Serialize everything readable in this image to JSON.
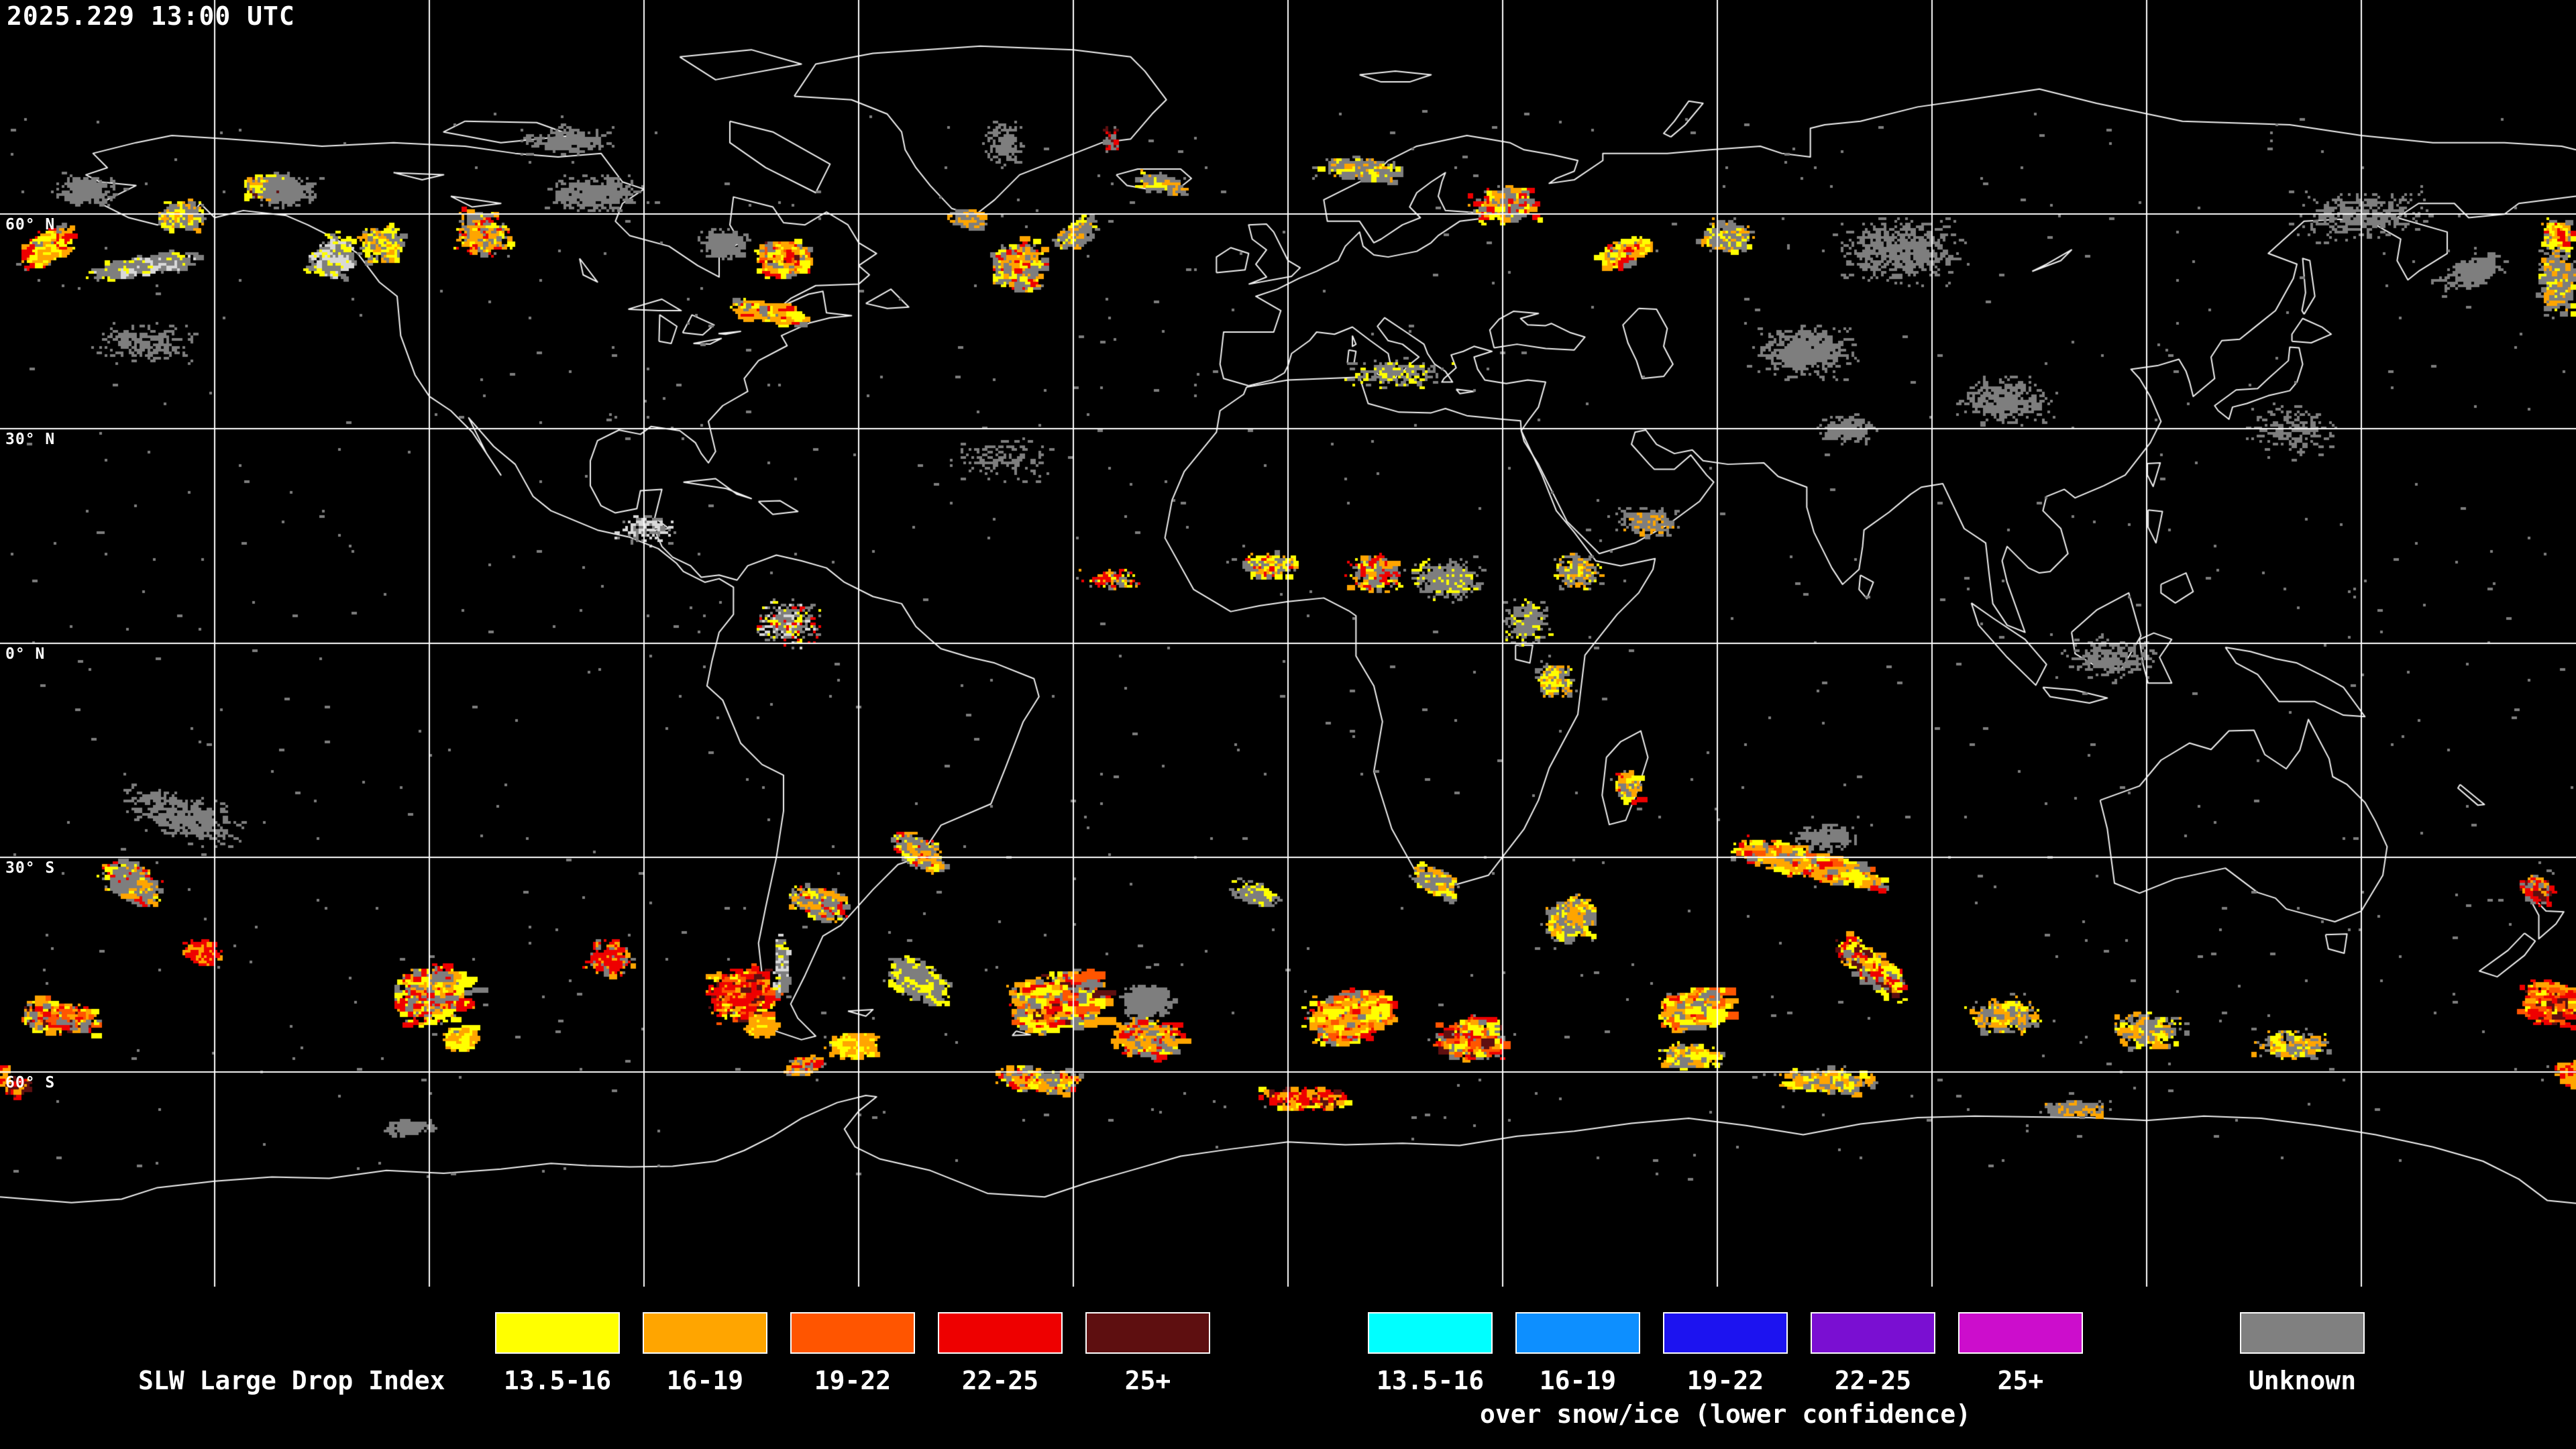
{
  "header": {
    "timestamp": "2025.229 13:00 UTC"
  },
  "map": {
    "background": "#000000",
    "grid_color": "#ffffff",
    "coastline_color": "#f2f2f2",
    "lat_lines": [
      60,
      30,
      0,
      -30,
      -60
    ],
    "lon_lines": [
      -150,
      -120,
      -90,
      -60,
      -30,
      0,
      30,
      60,
      90,
      120,
      150
    ],
    "lat_labels": [
      {
        "text": "60° N",
        "lat": 60
      },
      {
        "text": "30° N",
        "lat": 30
      },
      {
        "text": "0° N",
        "lat": 0
      },
      {
        "text": "30° S",
        "lat": -30
      },
      {
        "text": "60° S",
        "lat": -60
      }
    ],
    "palette": {
      "g": "#7e7e7e",
      "w": "#d8d8d8",
      "y": "#ffff00",
      "o": "#ffa500",
      "r": "#ff5500",
      "e": "#ee0000",
      "d": "#5e0f10"
    },
    "coastlines": [
      "-156 71,-161 70,-167 68.5,-165 66.5,-168 65.5,-166 64.5,-161 64,-166 61.5,-162 59.5,-158 58.5,-154 59,-152 61.5,-150 59.5,-146 60.5,-140 59.8,-137 58.5,-133 56.5,-130 54.5,-127 50.5,-124.5 48.5,-124 43,-122 37.5,-120 34.5,-117 32.5,-114 29.5,-110 23.5,-112 26.5,-114.5 31.5,-111 27.5,-108 25,-105.5 20.5,-103 18.5,-96.5 15.8,-92 14.8,-88 13.2,-85.5 11.2,-84.5 10,-81.5 8.5,-79.5 9,-77.5 7.8,-77.5 4,-79.5 1.5,-80.5 -2.5,-81.2 -6,-79 -8,-76.5 -14,-73.5 -17,-70.5 -18.5,-70.5 -23.5,-71.5 -30,-73 -37,-74 -42,-73.5 -46.5,-74.5 -50,-72.5 -54,-68 -55.5,-66 -55,-68.5 -52.5,-69.5 -50.5,-67.5 -46.5,-65 -41,-62.5 -39.5,-58 -34.5,-54.5 -31,-51.5 -30,-48.5 -25.5,-41.5 -22.5,-39.5 -17.5,-37 -11,-34.8 -7.5,-35.5 -5,-41 -2.8,-44.5 -2,-48.5 -0.8,-50 0.5,-52 2.3,-54 5.5,-58 6.5,-62 8.5,-64.5 10.5,-68 11.5,-71.5 12.3,-75.5 10.8,-77 8.8,-79.5 9.5,-82 9.2,-83.5 10.8,-86 12,-87.5 13.5,-88.5 15.8,-86.5 16,-88.5 17.5,-87.5 21.5,-90.5 21.3,-91 18.8,-94 18.2,-96 19.2,-97.5 22,-97.5 25.5,-96.5 28.3,-93.5 29.8,-90.5 29.2,-89 30.3,-85 29.7,-82.8 28,-82 26.5,-81 25.2,-80 26.8,-81 31,-79 33.2,-75.5 35.2,-76 37,-74 39.5,-70 41.6,-70.8 43,-66.8 44.8,-64 45.5,-61 45.8,-64.5 46.2,-65 49.2,-67 48.8,-71 47,-69.5 48.2,-66 50,-60 50.2,-58.5 51.5,-60 52.8,-57.5 54.5,-60 56,-61.5 58.5,-64.5 60.3,-67.5 58.5,-70.5 58.8,-72 61,-77.5 62.4,-78 58.5,-76.5 56,-79.5 54.5,-79.5 51.2,-82.5 52.8,-86.5 55.5,-92 57,-94 59,-93 61.5,-90 63.5,-93 64.5,-96 68.5,-102 68,-108 68.5,-115 69.5,-125 70,-135 69.5,-141 70,-148 70.5,-156 71",
      "-69 76.5,-66 81,-58 82.5,-43 83.5,-30 83,-22 82,-20 80,-17 76,-19 74,-22 70.5,-26 70,-37.5 65.5,-41 62,-43.8 59.8,-47 60.8,-50 64,-52 66.5,-53.5 69,-54 71.5,-56 74,-61 76,-69 76.5",
      "-78 73,-72 71.5,-64 67,-66 63,-73 66.5,-78 70,-78 73",
      "-115 73,-105 72.8,-100 71,-110 70,-118 71.5,-115 73",
      "-85 82,-75 83,-68 81,-80 78.8,-85 82",
      "-59 47.5,-56 46.8,-53 47,-55.5 49.5,-59 47.5",
      "-84.5 22.5,-80 23,-77 20.8,-75 20.2,-78.5 21.6,-84.5 22.5",
      "-74 19.8,-71 19.9,-68.5 18.4,-72 18,-74 19.8",
      "-24 65.5,-21 66.3,-15 66.3,-13.5 65,-15 63.8,-19 63.4,-22.5 64,-24 65.5",
      "-5.5 50.2,-3 51.2,-4.5 53,-3 55,-5 56.5,-5.5 58.5,-3 58.6,-2 57.5,0 53.5,1.7 52.5,0.5 51.3,-5.5 50.2",
      "-10 51.8,-6 52.2,-5.5 54.5,-8 55.3,-10 54,-10 51.8",
      "10 79.5,15 80,20 79.5,17 78.5,13 78.5,10 79.5",
      "53.5 70.8,55.5 72.5,58 75.5,56 75.8,54 73,52.5 71.3,53.5 70.8",
      "-92.2 46.7,-88 46.5,-84.8 46.5,-87.5 48.1,-92.2 46.7",
      "-87.9 42.2,-86.2 41.9,-85.4 44.3,-87.8 45.9,-87.9 42.2",
      "-84.6 43.4,-81.8 43.1,-80.2 44.5,-83.3 45.9,-84.6 43.4",
      "-83.1 41.9,-79.2 42.6,-80.8 41.8,-83.1 41.9",
      "-79.6 43.3,-76.5 43.6,-78.6 43.2,-79.6 43.3",
      "-125 65.8,-118 65.5,-121 64.8,-125 65.8",
      "-117 62.5,-110 61.5,-114 61,-117 62.5",
      "-99 53.8,-96.5 50.5,-98.5 51.5,-99 53.8",
      "-5.5 36,-9 37,-9.5 39,-9 43.5,-2 43.5,-1 46.5,-4.5 48.5,-1.5 49.5,1.5 51,4 52,7 53.5,8 55.5,10 57.5,10.5 55.5,12 54.3,14 54,18 54.8,20 56,21 57,24 59,28 59.5,30 59.9,25 60.3,22 60.5,21 62.5,21.5 64.5,22 65.8,20 64.5,18 63,17 61,18.5 59.5,16 58.5,13 56.5,12 56,10 59,5.5 59,5 62,8 63.5,12 65.5,14 67.5,18 69.5,25 71,28 70.5,31 70,33 69,37 68.3,40.5 67.5,40 66,37.5 65,36.5 64.3,40 64.8,44 67.5,44 68.5,53 68.5,59 69,66 69.5,69 68.5,73 68,73 72,75 72.5,80 73,88 75,95 76,105 77.5,113 75.5,125 73,140 72.5,150 71,160 70,170 70,178 69.5,180 69",
      "180 62.5,172 61.5,170 60,165 59.5,163 61.5,158 61.5,155 59.5,162 57.5,162 54.5,158 52,156.5 50.8,155 53.5,155.5 56.5,152 58.5,147 59.3,142 59,137 54.5,141 53,140.5 51,138 46.5,135.5 44.5,133 42.5,130.5 42.3,129 40,129.5 37,126.5 34.5,126 36.5,125.5 38,124.5 39.7,121.5 38.8,117.8 38.3,119 37,120.5 34.5,122 31,120.5 28,117 23.5,114 22,110 20.3,108.5 21.5,106 20.5,105.5 18.5,108 16,109 12.5,106.5 10,105 9.8,103.5 10.5,100.5 13.5,99.8 11.5,100.5 8.5,103 1.5,100.5 2.5,98.5 5.5,98 9.5,97.5 14,94.5 16,91.5 22.3,88.5 21.8,87 20.8,84 18.3,80.5 15.8,80.3 13.5,79.8 10.3,77.5 8.2,76 10.5,73.5 15.5,72.5 19,72.5 21.8,68.5 23.3,66.5 25.2,61.5 25,58 25.5,56.5 27,54 26.5,51.5 27.8,50 29.8,48.5 29.5,48 27.8,50.5 25,51.2 24.3,54 24.3,56.3 26.3,58.5 23.5,59.5 22.5,57.5 19.8,53 16.5,48.5 14,43.5 12.5,39 17,37 21,35 25,33 28.2,32.6 29.7,33.5 31,35 33,36 36.5,33.5 36.8,30.5 36.3,27.5 36.8,26.5 38.3,26 40,28.5 40.8,26 41.5,24.5 40.8,22.8 40.3,23.5 38.5,21.8 37,21.5 36.5,23 36.5,22 38,20.5 39,19.5 40.5,19 41.8,16.5 43.5,13.5 45.5,12.5 44.3,14 42.3,16 41.8,18.3 40,16.8 38.8,15.9 37.8,14.5 38.2,14 40.5,11.5 42.3,9 44.2,6.5 43.2,4 43.5,3 42.3,0.5 40.5,0 38.8,-0.5 37.8,-2.2 36.8,-5.5 36",
      "28.8 41.3,32 41.8,36 41.2,40 41,41.5 42.8,39.5 43.4,36.8 44.7,36 44.4,33.5 44.5,32.5 45.4,35 46.1,31.5 46.4,29.5 45.3,28.2 43.8,28.8 41.3",
      "49 46.8,51.5 46.7,53 44,52.5 41.5,53.8 39,52.5 37.3,49.5 37,48.7 39.5,47.5 42,46.8 44.5,49 46.8",
      "104 52,108 53.5,109.5 55,106 53,104 52",
      "80 9.5,81.8 8.5,80.9 6.2,79.8 7.5,80 9.5",
      "130 32.5,131.5 31.3,132 33,134 33.5,137 34.6,140 35.3,141 36.5,141.8 39,141.3 41.3,140 41.4,139.8 39.5,137 37,135.5 35.6,132.5 35.4,131 34.3,129.5 33.2,130 32.5",
      "140.3 42.2,143 42,145.8 43.2,144.5 44.2,141.8 45.4,140.3 43.2,140.3 42.2",
      "142 46,143.5 48.5,142.8 53.5,141.8 53.8,142.2 49,141.7 46.5,142 46",
      "120.1 25.1,121.9 25.2,120.9 21.9,120.1 23.5,120.1 25.1",
      "120.2 18.6,122.2 18.4,121.3 14,120.2 16.2,120.2 18.6",
      "122 8.2,125.5 9.8,126.5 7.2,124 5.6,122 7,122 8.2",
      "109.5 1.5,113 4.6,117.5 7,119.2 1,116.5 -3.6,113 -3.3,110 -1.5,109.5 1.5",
      "95.5 5.6,98.5 3.5,103 0.5,106 -3,104.5 -5.9,100.5 -2,96.5 2.5,95.5 5.6",
      "105.5 -6.2,110 -6.6,114.5 -7.7,112 -8.4,106.5 -7.5,105.5 -6.2",
      "119 0.5,121 1.4,123.5 0.5,121.8 -2,123.5 -5.6,120.2 -5.6,119.5 -3,119 0.5",
      "131 -0.6,134.5 -1.2,138 -2.2,141 -2.8,145 -4.8,147.5 -6.2,150.5 -10.3,147.5 -10.1,143.5 -8.2,138.5 -8.2,135.5 -4.4,132.5 -2.8,131 -0.6",
      "113.5 -22,114.5 -26,115.5 -33.6,119 -35,124 -33,131 -31.5,135.5 -34.9,138 -35.7,139.5 -37.2,144 -38.4,146.3 -39,150 -37.5,153 -32.5,153.6 -28.5,152 -25,150.5 -22.3,148 -19.8,146 -18.7,145.5 -16.2,142.6 -10.7,141.4 -15,139.5 -17.6,136.5 -15.6,135 -12.2,131.5 -12.3,129 -14.9,126 -14,122 -16.4,119 -20,113.5 -22",
      "145 -40.8,148 -40.7,147.6 -43.4,145.4 -42.8,145 -40.8",
      "172.8 -34.4,175.8 -37.5,178.3 -37.6,177.2 -39.3,174.8 -41.4,174.8 -38.1,172.8 -34.4",
      "172.8 -40.6,174.3 -41.7,172.8 -43.7,169 -46.7,166.5 -45.9,170.5 -43,172.8 -40.6",
      "163.8 -19.8,167.2 -22.6,166.3 -22.7,163.5 -20.3,163.8 -19.8",
      "-5.8 35.8,0 36.8,10 37.2,11.2 33.5,15.5 32.3,20 32.2,22 32.8,25 31.8,30 31.3,32.5 31.1,32.6 29.7,35.5 23.5,37.5 18.5,40 15.5,43 11.5,46.5 10.8,51.3 11.8,51 10.3,49 7,46 4,41.5 -1.7,40.5 -10,36.5 -17.5,35 -22,33 -26,28 -32.5,20 -34.8,18.4 -33,14.5 -26,12 -18,13.2 -11,12 -6,9.5 -1.8,9.5 3.8,8.5 4.5,5 6.3,0 5.8,-4 5.2,-8 4.4,-13.2 7.5,-17.2 14.7,-16.2 20,-14.5 24,-10 29.5,-9.5 32.5,-6.2 34.8,-5.8 35.8",
      "44.5 -16,46.5 -13.8,49.3 -12.3,50.3 -16,48.7 -21,47.2 -24.8,44.9 -25.4,43.9 -21.3,44.3 -17.8,44.5 -16",
      "31.8 -0.3,34.2 -0.3,33.8 -2.8,31.8 -2.3,31.8 -0.3",
      "9 43,9.5 41.8,9 41.5,9 43",
      "8.5 41,9.5 40.8,9.2 39,8.3 39.2,8.5 41",
      "12.5 38.2,15.5 38.3,15 36.8,12.5 37.6,12.5 38.2",
      "23.5 35.5,26 35.2,24 34.9,23.5 35.5",
      "-61.5 -51.5,-58 -51.3,-59 -52.2,-61.5 -51.5",
      "-38 -54.3,-36 -54.8,-38.5 -54.9,-38 -54.3",
      "-180 -77.5,-170 -78.3,-163 -77.8,-158 -76.2,-150 -75.3,-142 -74.7,-134 -74.9,-126 -73.8,-118 -74.2,-110 -73.6,-103 -72.8,-98 -73.1,-92 -73.3,-86 -73.2,-80 -72.5,-76 -71,-72 -69,-68 -66.5,-63 -64.3,-59 -63.3,-57.5 -63.5,-60 -65.5,-62 -68,-60.5 -70.5,-57 -72.2,-50 -73.8,-42 -77,-34 -77.5,-28 -75.5,-22 -73.8,-15 -71.8,-8 -70.8,0 -69.8,8 -70.2,16 -70,24 -70.3,32 -69,40 -68.3,48 -67.2,56 -66.5,64 -67.5,72 -68.8,80 -67.3,88 -66.4,96 -66.2,104 -66.3,112 -66.4,120 -66.8,128 -66.2,136 -66.5,144 -67.5,152 -68.8,160 -70.5,167 -72.5,172 -75,176 -78,180 -78.4"
    ],
    "data_regions": [
      [
        -174,
        55.5,
        4,
        2.5,
        -30,
        500,
        5,
        "y3o3e1g1"
      ],
      [
        177,
        51,
        3,
        6,
        0,
        550,
        4,
        "g4o1y1"
      ],
      [
        177,
        57.5,
        2.5,
        2,
        0,
        300,
        5,
        "o2y2e1g1"
      ],
      [
        -168,
        63.5,
        5,
        2.5,
        0,
        400,
        3,
        "g1"
      ],
      [
        -160,
        53,
        9,
        1.6,
        -8,
        400,
        4,
        "g3w1y1"
      ],
      [
        -155,
        60,
        4,
        2.5,
        0,
        300,
        4,
        "g2y2o1"
      ],
      [
        -143,
        64,
        3.5,
        2,
        0,
        450,
        5,
        "y3o2g1d1"
      ],
      [
        -140,
        63.5,
        5,
        2.8,
        0,
        400,
        3,
        "g1"
      ],
      [
        -134,
        54.5,
        2.5,
        4,
        38,
        350,
        4,
        "w2g2y1"
      ],
      [
        -127,
        56,
        4,
        3,
        0,
        350,
        4,
        "o2y2g2"
      ],
      [
        -113,
        57.5,
        4.5,
        4,
        0,
        400,
        4,
        "o2y1g2e1"
      ],
      [
        -97,
        63,
        8,
        3,
        0,
        500,
        3,
        "g1"
      ],
      [
        -101,
        70.5,
        8,
        2.5,
        0,
        250,
        3,
        "g1"
      ],
      [
        -71,
        54,
        4,
        2.8,
        0,
        1000,
        6,
        "y3o3r2e2g2d1"
      ],
      [
        -79,
        56,
        4,
        2.5,
        0,
        400,
        3,
        "g1"
      ],
      [
        -73,
        46.5,
        6.5,
        1.6,
        12,
        400,
        5,
        "o3y2g2e1"
      ],
      [
        -38,
        53,
        4.5,
        4,
        0,
        650,
        5,
        "g3y2o2e1"
      ],
      [
        -30,
        57.5,
        3.5,
        1.8,
        -35,
        250,
        4,
        "g2o1y1"
      ],
      [
        -45,
        59.5,
        3,
        1.5,
        20,
        200,
        4,
        "g2o1"
      ],
      [
        -40,
        70,
        3.5,
        4,
        0,
        150,
        3,
        "g1"
      ],
      [
        -25,
        70.5,
        1.2,
        2.5,
        0,
        80,
        3,
        "e1d1g1"
      ],
      [
        -18,
        64.5,
        4,
        1.6,
        8,
        220,
        4,
        "g3o1y1"
      ],
      [
        10,
        66.5,
        7,
        2,
        4,
        450,
        4,
        "g3y1o1"
      ],
      [
        30,
        61.5,
        5.5,
        3,
        0,
        450,
        5,
        "y2o2g3e1"
      ],
      [
        46,
        54.5,
        3.5,
        2.2,
        -25,
        350,
        5,
        "o3y2e1g1"
      ],
      [
        61,
        57,
        4.5,
        2.8,
        0,
        300,
        4,
        "g3y1o1"
      ],
      [
        85,
        55,
        11,
        6,
        0,
        650,
        3,
        "g1"
      ],
      [
        72,
        41,
        9,
        4.5,
        0,
        650,
        3,
        "g1"
      ],
      [
        100,
        34,
        8,
        4,
        0,
        400,
        3,
        "g1"
      ],
      [
        150,
        60,
        11,
        4,
        -5,
        400,
        3,
        "g1"
      ],
      [
        165,
        52,
        6,
        2.5,
        -20,
        260,
        3,
        "g1"
      ],
      [
        -160,
        42,
        9,
        3.5,
        0,
        220,
        3,
        "g1"
      ],
      [
        -40,
        26,
        8,
        4,
        0,
        130,
        3,
        "g1"
      ],
      [
        15,
        38,
        9,
        2.5,
        0,
        260,
        3,
        "g2y1"
      ],
      [
        78,
        30,
        5,
        2.5,
        0,
        260,
        3,
        "g1"
      ],
      [
        -70,
        3,
        5.5,
        4,
        0,
        350,
        3,
        "g3w1y1e1"
      ],
      [
        -25,
        9,
        5,
        1.8,
        0,
        130,
        3,
        "y1o1e1g1"
      ],
      [
        -3,
        11,
        4.5,
        2.2,
        0,
        300,
        4,
        "g2y2e1o1"
      ],
      [
        12,
        10,
        4.5,
        2.8,
        0,
        420,
        4,
        "g3e2y1o1"
      ],
      [
        22,
        9,
        6,
        3.5,
        0,
        450,
        3,
        "g4y1"
      ],
      [
        33,
        3,
        4,
        4,
        0,
        300,
        3,
        "g3y1"
      ],
      [
        40,
        10,
        4,
        3,
        0,
        300,
        3,
        "g3y1o1"
      ],
      [
        50,
        17,
        5,
        2.5,
        0,
        250,
        3,
        "g3o1"
      ],
      [
        37,
        -5,
        3,
        3,
        0,
        260,
        4,
        "g2y1o1"
      ],
      [
        115,
        -2,
        8,
        4,
        0,
        260,
        3,
        "g1"
      ],
      [
        140,
        30,
        8,
        5,
        0,
        180,
        3,
        "g1"
      ],
      [
        -90,
        16,
        5,
        2.5,
        0,
        140,
        3,
        "g1w1"
      ],
      [
        -155,
        -24,
        11,
        4,
        18,
        380,
        3,
        "g1"
      ],
      [
        -162,
        -33,
        5,
        3,
        25,
        500,
        4,
        "g4o1e1y1"
      ],
      [
        -152,
        -43,
        3,
        2,
        0,
        220,
        4,
        "e2o1"
      ],
      [
        -172,
        -52,
        6,
        2.8,
        5,
        700,
        5,
        "o3r2e2y2g2d1"
      ],
      [
        -178,
        -62,
        2,
        1.5,
        -20,
        140,
        4,
        "d2e1o1"
      ],
      [
        -120,
        -49,
        6,
        4.5,
        -10,
        850,
        5,
        "g3o2e2y2"
      ],
      [
        -116,
        -55,
        2.5,
        1.8,
        0,
        300,
        5,
        "y3o2"
      ],
      [
        -123,
        -67.5,
        5,
        1.2,
        0,
        160,
        4,
        "g1"
      ],
      [
        -95,
        -44,
        4,
        3,
        0,
        260,
        4,
        "e2o1g1"
      ],
      [
        -77,
        -49,
        5,
        4,
        -12,
        1100,
        5,
        "e4r2o2y1d1"
      ],
      [
        -74,
        -53.5,
        2.5,
        1.5,
        0,
        260,
        5,
        "o3y1"
      ],
      [
        -71,
        -45,
        1.1,
        5,
        0,
        300,
        4,
        "w2g2y1"
      ],
      [
        -66,
        -36,
        5,
        2.5,
        20,
        350,
        4,
        "g3y1o1e1"
      ],
      [
        -61,
        -56,
        4,
        1.8,
        -5,
        450,
        5,
        "y2o3"
      ],
      [
        -52,
        -47,
        5.5,
        3,
        25,
        500,
        4,
        "g4y2"
      ],
      [
        -52,
        -29,
        5,
        2.5,
        30,
        400,
        4,
        "g3o1y1e1"
      ],
      [
        -33,
        -50,
        7,
        4.5,
        -10,
        1500,
        6,
        "y3o3r2e2g3d1"
      ],
      [
        -20,
        -55,
        5.5,
        3,
        8,
        550,
        5,
        "o2e2y1g2"
      ],
      [
        -20,
        -50,
        4,
        3,
        0,
        500,
        4,
        "g1"
      ],
      [
        8,
        -52,
        6.5,
        4,
        -12,
        900,
        6,
        "o3r2e2y2g3"
      ],
      [
        25,
        -55,
        5,
        3.2,
        0,
        750,
        6,
        "y3o2r2e2g2d1"
      ],
      [
        39,
        -38,
        3,
        4,
        50,
        400,
        4,
        "g3y2o2"
      ],
      [
        20,
        -33,
        4,
        2,
        28,
        260,
        4,
        "g2y2o1"
      ],
      [
        47,
        -20,
        1.5,
        2.5,
        -20,
        260,
        4,
        "o2e2g2y1"
      ],
      [
        72,
        -30.5,
        12,
        2.2,
        14,
        1100,
        5,
        "y3o3r1g2e1"
      ],
      [
        56,
        -51,
        5,
        3,
        -10,
        950,
        6,
        "y4o3r2e1g2"
      ],
      [
        56,
        -57.5,
        5,
        2,
        0,
        300,
        5,
        "y2o2g1"
      ],
      [
        81,
        -45,
        7,
        2.5,
        40,
        700,
        5,
        "e2o2y2g2d1"
      ],
      [
        75,
        -27,
        6,
        2.5,
        0,
        200,
        3,
        "g1"
      ],
      [
        100,
        -52,
        6,
        3,
        0,
        380,
        4,
        "g2o2y1"
      ],
      [
        120,
        -54,
        6,
        3,
        0,
        300,
        4,
        "g2o1y1"
      ],
      [
        140,
        -56,
        6,
        2.5,
        0,
        260,
        4,
        "g2o1y1"
      ],
      [
        174,
        -34,
        2.5,
        2,
        35,
        260,
        4,
        "e2o1d1g1"
      ],
      [
        176,
        -50,
        4.5,
        3.5,
        10,
        650,
        5,
        "e3r2o2d1y1"
      ],
      [
        179,
        -60,
        2.2,
        2,
        0,
        260,
        5,
        "o3e1"
      ],
      [
        75,
        -61,
        8,
        2,
        0,
        380,
        5,
        "o2y2g2"
      ],
      [
        2,
        -63.5,
        7,
        1.8,
        0,
        350,
        5,
        "o2e2y1d1"
      ],
      [
        -35,
        -61,
        7,
        2,
        5,
        330,
        5,
        "o2e1y1g2"
      ],
      [
        -68,
        -59,
        3,
        1.5,
        -15,
        220,
        4,
        "o2e1g1"
      ],
      [
        110,
        -65,
        6,
        1.5,
        0,
        180,
        4,
        "g2o1"
      ],
      [
        -5,
        -35,
        4,
        2,
        20,
        200,
        3,
        "g2y1"
      ],
      [
        0,
        0,
        180,
        75,
        0,
        900,
        3,
        "g1"
      ]
    ]
  },
  "legend": {
    "title": "SLW Large Drop Index",
    "categories": [
      "13.5-16",
      "16-19",
      "19-22",
      "22-25",
      "25+"
    ],
    "normal_colors": [
      "#ffff00",
      "#ffa500",
      "#ff5500",
      "#ee0000",
      "#5e0f10"
    ],
    "snow_colors": [
      "#00ffff",
      "#0d8fff",
      "#1c13f0",
      "#7a0fd2",
      "#cc0dcc"
    ],
    "snow_caption": "over snow/ice (lower confidence)",
    "unknown_label": "Unknown",
    "unknown_color": "#808080"
  }
}
